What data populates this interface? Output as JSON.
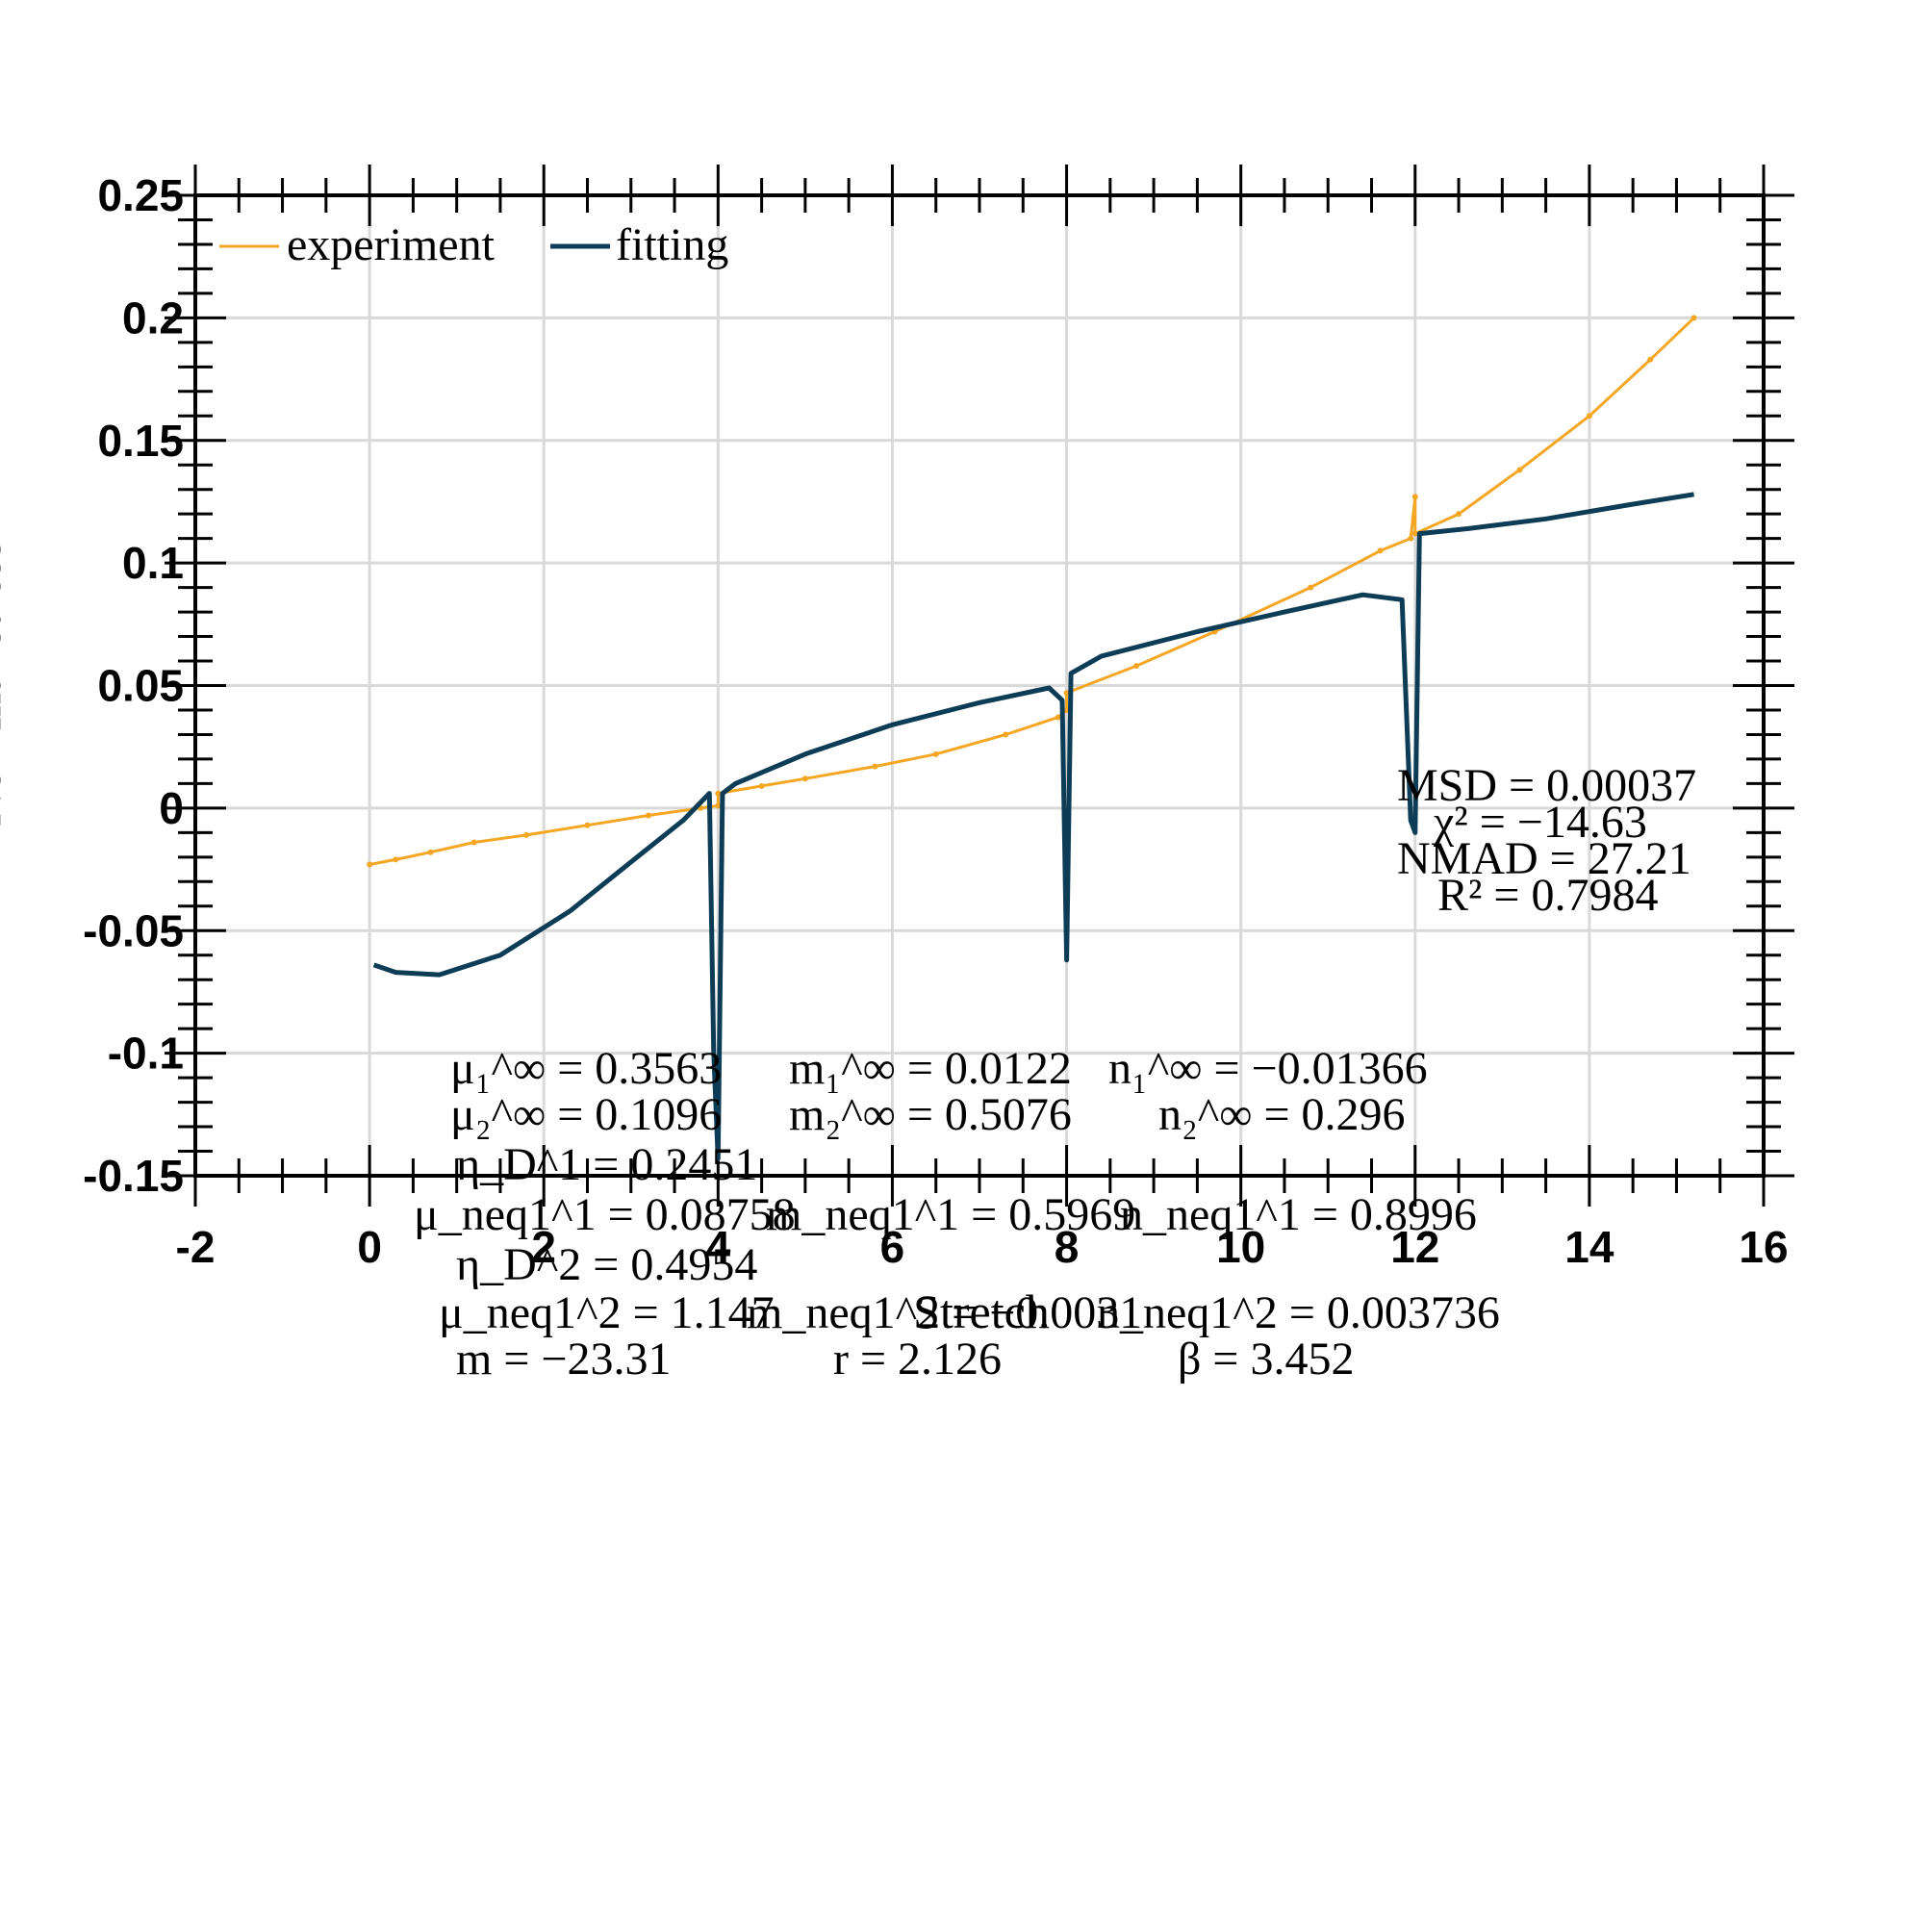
{
  "chart_data": {
    "type": "line",
    "xlabel": "Stretch",
    "ylabel": "Nominal stress",
    "xlim": [
      -2,
      16
    ],
    "ylim": [
      -0.15,
      0.25
    ],
    "xticks": [
      "-2",
      "0",
      "2",
      "4",
      "6",
      "8",
      "10",
      "12",
      "14",
      "16"
    ],
    "yticks": [
      "0.25",
      "0.2",
      "0.15",
      "0.1",
      "0.05",
      "0",
      "-0.05",
      "-0.1",
      "-0.15"
    ],
    "grid": true,
    "legend_position": "top-left",
    "colors": {
      "experiment": "#f5a623",
      "fitting": "#0d3d56"
    },
    "series": [
      {
        "name": "experiment",
        "x": [
          0,
          0.3,
          0.7,
          1.2,
          1.8,
          2.5,
          3.2,
          3.8,
          4.0,
          4.0,
          4.5,
          5.0,
          5.8,
          6.5,
          7.3,
          7.9,
          8.0,
          8.0,
          8.8,
          9.7,
          10.8,
          11.6,
          11.95,
          12.0,
          12.0,
          12.5,
          13.2,
          14.0,
          14.7,
          15.2
        ],
        "y": [
          -0.023,
          -0.021,
          -0.018,
          -0.014,
          -0.011,
          -0.007,
          -0.003,
          0.0,
          0.001,
          0.006,
          0.009,
          0.012,
          0.017,
          0.022,
          0.03,
          0.037,
          0.04,
          0.047,
          0.058,
          0.072,
          0.09,
          0.105,
          0.11,
          0.127,
          0.112,
          0.12,
          0.138,
          0.16,
          0.183,
          0.2
        ]
      },
      {
        "name": "fitting",
        "x": [
          0.05,
          0.3,
          0.8,
          1.5,
          2.3,
          3.0,
          3.6,
          3.9,
          3.95,
          4.0,
          4.05,
          4.2,
          5.0,
          6.0,
          7.0,
          7.8,
          7.95,
          8.0,
          8.05,
          8.4,
          9.5,
          10.5,
          11.4,
          11.85,
          11.95,
          12.0,
          12.05,
          12.6,
          13.5,
          14.5,
          15.2
        ],
        "y": [
          -0.064,
          -0.067,
          -0.068,
          -0.06,
          -0.042,
          -0.022,
          -0.005,
          0.006,
          -0.1,
          -0.143,
          0.006,
          0.01,
          0.022,
          0.034,
          0.043,
          0.049,
          0.044,
          -0.062,
          0.055,
          0.062,
          0.072,
          0.08,
          0.087,
          0.085,
          -0.005,
          -0.01,
          0.112,
          0.114,
          0.118,
          0.124,
          0.128
        ]
      }
    ],
    "annotations": {
      "msd": "MSD = 0.00037",
      "chi2": "χ² = −14.63",
      "nmad": "NMAD = 27.21",
      "r2": "R² = 0.7984",
      "mu1_inf": "μ₁^∞ = 0.3563",
      "m1_inf": "m₁^∞ = 0.0122",
      "n1_inf": "n₁^∞ = −0.01366",
      "mu2_inf": "μ₂^∞ = 0.1096",
      "m2_inf": "m₂^∞ = 0.5076",
      "n2_inf": "n₂^∞ = 0.296",
      "eta1_D": "η_D^1 = 0.2451",
      "mu1_neq": "μ_neq1^1 = 0.08758",
      "m1_neq": "m_neq1^1 = 0.5969",
      "n1_neq": "n_neq1^1 = 0.8996",
      "eta2_D": "η_D^2 = 0.4954",
      "mu2_neq": "μ_neq1^2 = 1.147",
      "m2_neq": "m_neq1^2 = −0.0031",
      "n2_neq": "n_neq1^2 = 0.003736",
      "m": "m = −23.31",
      "r": "r = 2.126",
      "beta": "β = 3.452"
    }
  }
}
